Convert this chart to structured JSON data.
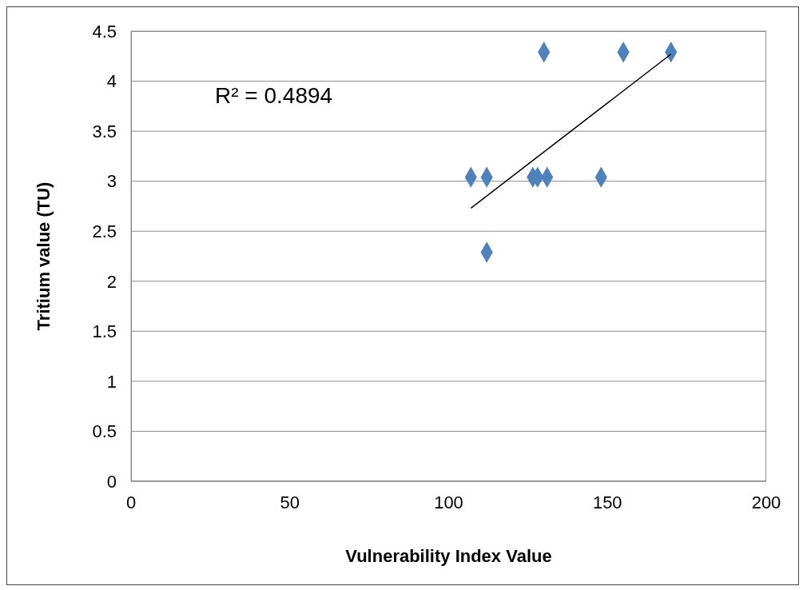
{
  "chart_data": {
    "type": "scatter",
    "xlabel": "Vulnerability Index Value",
    "ylabel": "Tritium value (TU)",
    "xlim": [
      0,
      200
    ],
    "xticks": [
      0,
      50,
      100,
      150,
      200
    ],
    "ylim": [
      0,
      4.5
    ],
    "yticks": [
      0,
      0.5,
      1,
      1.5,
      2,
      2.5,
      3,
      3.5,
      4,
      4.5
    ],
    "grid": "y",
    "marker": "diamond",
    "annotations": [
      "R² = 0.4894"
    ],
    "series": [
      {
        "color": "#4f81bd",
        "x": [
          107,
          112,
          112,
          126.5,
          128,
          131,
          148,
          130,
          155,
          170
        ],
        "values": [
          3.04,
          3.04,
          2.29,
          3.04,
          3.04,
          3.04,
          3.04,
          4.29,
          4.29,
          4.29
        ]
      },
      {
        "type": "line",
        "marker": "none",
        "color": "#000000",
        "x": [
          107,
          170
        ],
        "values": [
          2.73,
          4.27
        ]
      }
    ]
  }
}
